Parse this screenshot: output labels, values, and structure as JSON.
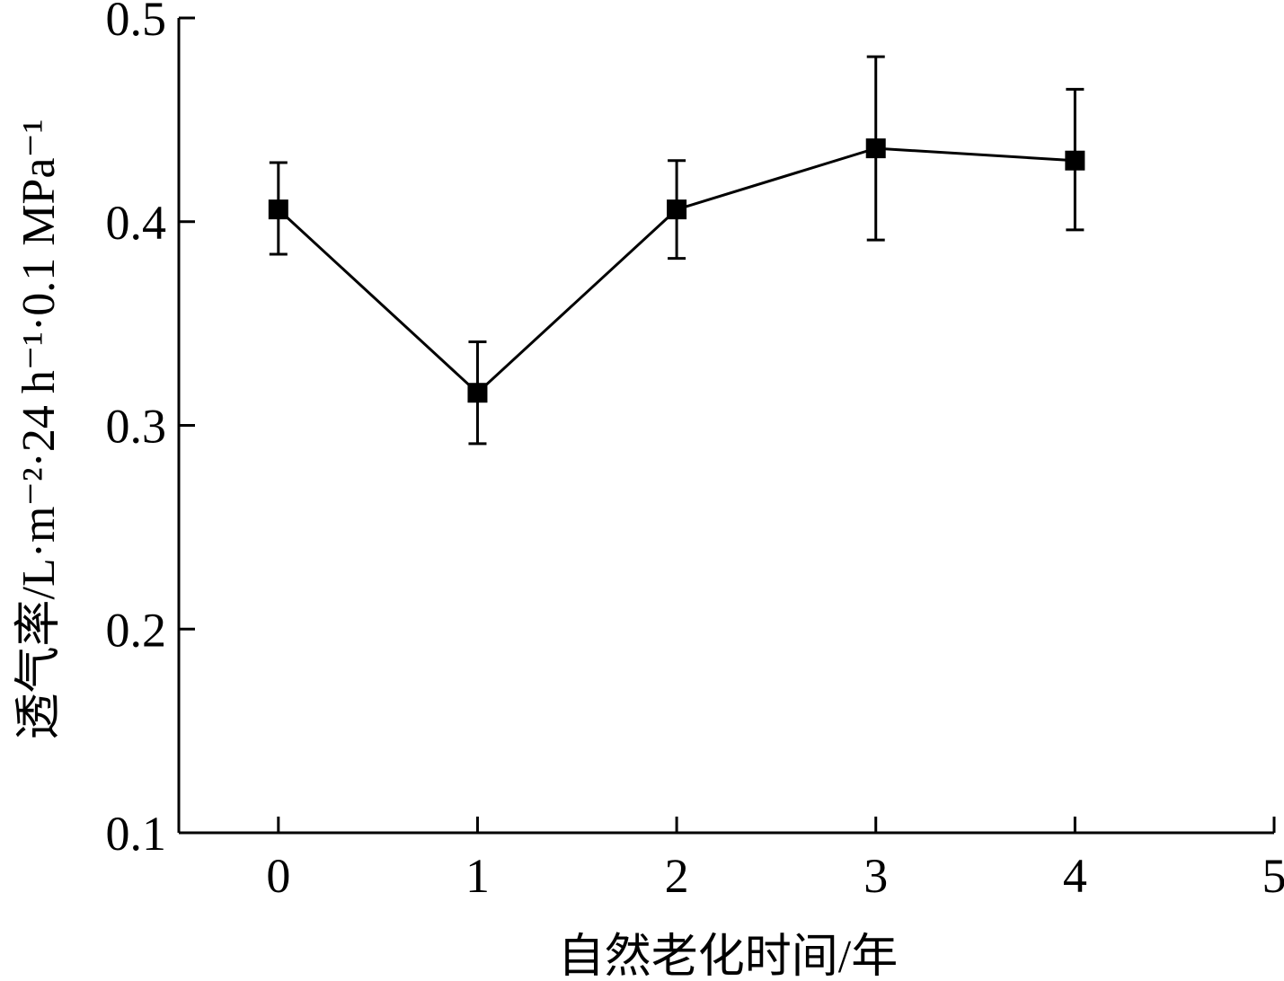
{
  "chart_data": {
    "type": "line",
    "title": "",
    "xlabel": "自然老化时间/年",
    "ylabel": "透气率/L·m⁻²·24 h⁻¹·0.1 MPa⁻¹",
    "xlim": [
      -0.5,
      5
    ],
    "ylim": [
      0.1,
      0.5
    ],
    "x_ticks": [
      "0",
      "1",
      "2",
      "3",
      "4",
      "5"
    ],
    "y_ticks": [
      "0.1",
      "0.2",
      "0.3",
      "0.4",
      "0.5"
    ],
    "grid": false,
    "marker": "square",
    "series": [
      {
        "x": [
          0,
          1,
          2,
          3,
          4
        ],
        "y": [
          0.406,
          0.316,
          0.406,
          0.436,
          0.43
        ],
        "error_low": [
          0.384,
          0.291,
          0.382,
          0.391,
          0.396
        ],
        "error_high": [
          0.429,
          0.341,
          0.43,
          0.481,
          0.465
        ]
      }
    ]
  }
}
